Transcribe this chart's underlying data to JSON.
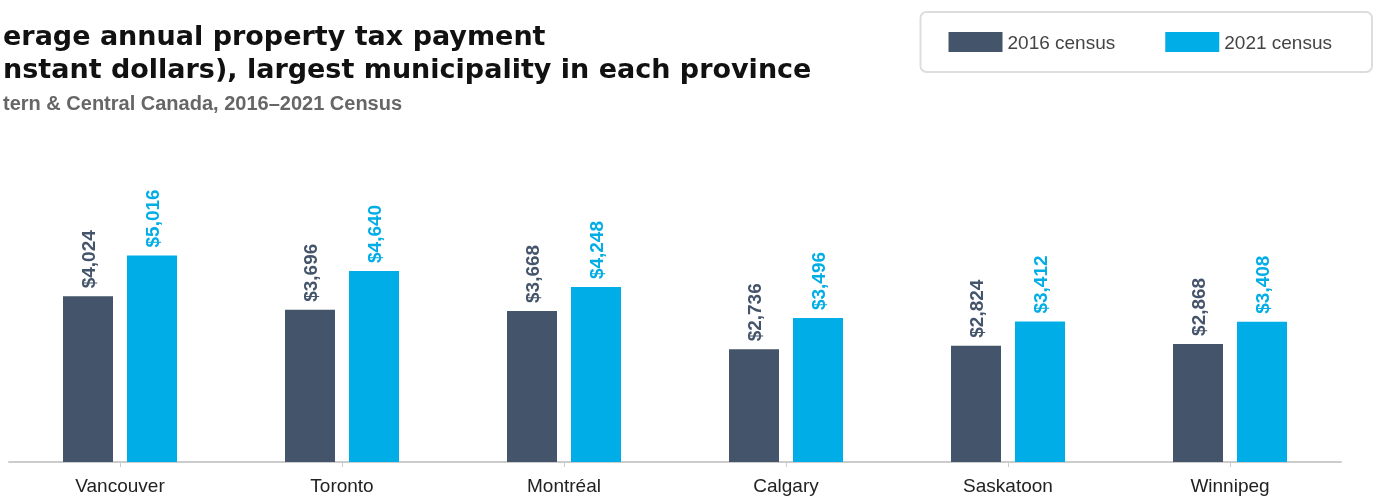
{
  "chart_data": {
    "type": "bar",
    "title": "erage annual property tax payment\nnstant dollars), largest municipality in each province",
    "subtitle": "tern & Central Canada, 2016–2021 Census",
    "categories": [
      "Vancouver",
      "Toronto",
      "Montréal",
      "Calgary",
      "Saskatoon",
      "Winnipeg"
    ],
    "series": [
      {
        "name": "2016 census",
        "color": "#44546a",
        "values": [
          4024,
          3696,
          3668,
          2736,
          2824,
          2868
        ],
        "value_labels": [
          "$4,024",
          "$3,696",
          "$3,668",
          "$2,736",
          "$2,824",
          "$2,868"
        ]
      },
      {
        "name": "2021 census",
        "color": "#00ade6",
        "values": [
          5016,
          4640,
          4248,
          3496,
          3412,
          3408
        ],
        "value_labels": [
          "$5,016",
          "$4,640",
          "$4,248",
          "$3,496",
          "$3,412",
          "$3,408"
        ]
      }
    ],
    "grid": false,
    "legend": "top right"
  }
}
